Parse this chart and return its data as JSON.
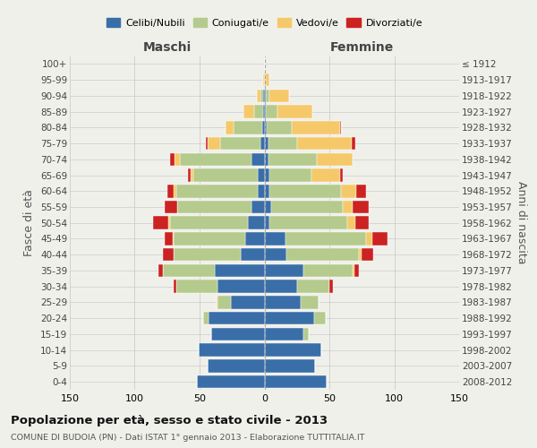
{
  "age_groups": [
    "0-4",
    "5-9",
    "10-14",
    "15-19",
    "20-24",
    "25-29",
    "30-34",
    "35-39",
    "40-44",
    "45-49",
    "50-54",
    "55-59",
    "60-64",
    "65-69",
    "70-74",
    "75-79",
    "80-84",
    "85-89",
    "90-94",
    "95-99",
    "100+"
  ],
  "birth_years": [
    "2008-2012",
    "2003-2007",
    "1998-2002",
    "1993-1997",
    "1988-1992",
    "1983-1987",
    "1978-1982",
    "1973-1977",
    "1968-1972",
    "1963-1967",
    "1958-1962",
    "1953-1957",
    "1948-1952",
    "1943-1947",
    "1938-1942",
    "1933-1937",
    "1928-1932",
    "1923-1927",
    "1918-1922",
    "1913-1917",
    "≤ 1912"
  ],
  "maschi": {
    "celibi": [
      52,
      44,
      51,
      41,
      43,
      26,
      36,
      38,
      18,
      15,
      13,
      10,
      5,
      5,
      10,
      3,
      2,
      1,
      1,
      0,
      0
    ],
    "coniugati": [
      0,
      0,
      0,
      0,
      4,
      10,
      32,
      40,
      52,
      55,
      60,
      57,
      63,
      50,
      55,
      31,
      22,
      7,
      2,
      0,
      0
    ],
    "vedovi": [
      0,
      0,
      0,
      0,
      0,
      1,
      0,
      0,
      0,
      1,
      1,
      0,
      2,
      2,
      4,
      10,
      6,
      8,
      3,
      1,
      0
    ],
    "divorziati": [
      0,
      0,
      0,
      0,
      0,
      0,
      2,
      4,
      8,
      6,
      12,
      10,
      5,
      2,
      4,
      1,
      0,
      0,
      0,
      0,
      0
    ]
  },
  "femmine": {
    "nubili": [
      48,
      39,
      44,
      30,
      38,
      28,
      25,
      30,
      17,
      16,
      4,
      5,
      4,
      4,
      3,
      3,
      2,
      1,
      1,
      0,
      0
    ],
    "coniugate": [
      0,
      0,
      0,
      4,
      9,
      14,
      25,
      38,
      56,
      62,
      60,
      55,
      55,
      32,
      37,
      22,
      19,
      9,
      3,
      1,
      0
    ],
    "vedove": [
      0,
      0,
      0,
      0,
      0,
      0,
      0,
      1,
      2,
      5,
      6,
      8,
      12,
      22,
      28,
      42,
      37,
      27,
      15,
      3,
      0
    ],
    "divorziate": [
      0,
      0,
      0,
      0,
      0,
      0,
      3,
      4,
      9,
      12,
      10,
      12,
      7,
      2,
      0,
      3,
      1,
      0,
      0,
      0,
      0
    ]
  },
  "colors": {
    "celibi": "#3a6ea8",
    "coniugati": "#b5ca8d",
    "vedovi": "#f5c96a",
    "divorziati": "#cc2222"
  },
  "xlim": 150,
  "title": "Popolazione per età, sesso e stato civile - 2013",
  "subtitle": "COMUNE DI BUDOIA (PN) - Dati ISTAT 1° gennaio 2013 - Elaborazione TUTTITALIA.IT",
  "ylabel_left": "Fasce di età",
  "ylabel_right": "Anni di nascita",
  "xlabel_maschi": "Maschi",
  "xlabel_femmine": "Femmine",
  "bg_color": "#f0f0eb",
  "grid_color": "#cccccc"
}
